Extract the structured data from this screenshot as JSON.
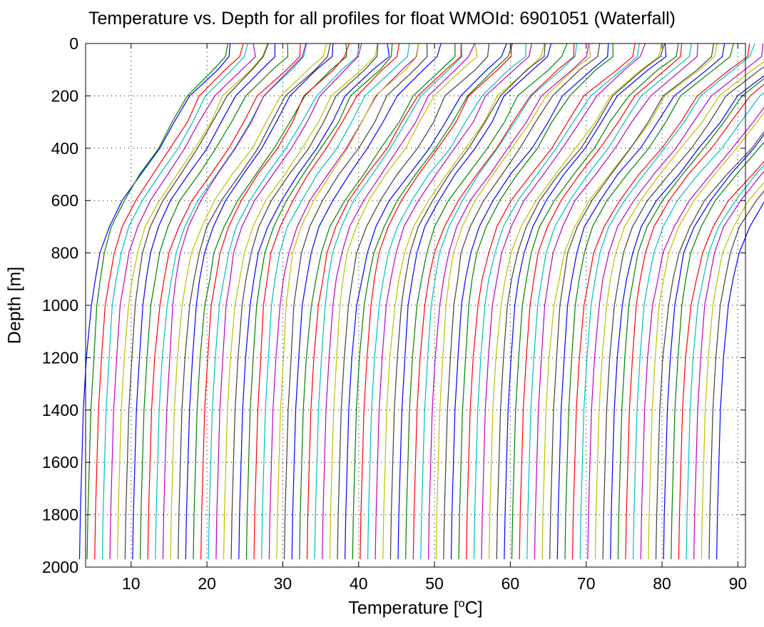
{
  "chart_data": {
    "type": "line",
    "title": "Temperature vs. Depth for all profiles for float WMOId: 6901051 (Waterfall)",
    "xlabel_text": "Temperature [",
    "xlabel_sup": "o",
    "xlabel_tail": "C]",
    "ylabel": "Depth [m]",
    "xlim": [
      4,
      91
    ],
    "ylim": [
      2000,
      0
    ],
    "y_reversed": true,
    "grid": true,
    "x_ticks": [
      10,
      20,
      30,
      40,
      50,
      60,
      70,
      80,
      90
    ],
    "y_ticks": [
      0,
      200,
      400,
      600,
      800,
      1000,
      1200,
      1400,
      1600,
      1800,
      2000
    ],
    "color_cycle": [
      "#0000ff",
      "#008000",
      "#ff0000",
      "#00bfbf",
      "#bf00bf",
      "#bfbf00",
      "#404040"
    ],
    "profile_count": 85,
    "waterfall_offset_per_profile": 1,
    "profile_shape_depth": [
      0,
      50,
      100,
      200,
      300,
      400,
      500,
      600,
      700,
      800,
      900,
      1000,
      1200,
      1400,
      1600,
      1800,
      1970
    ],
    "profile_shape_temp": [
      21.5,
      21.3,
      19.5,
      16.0,
      14.2,
      12.2,
      9.8,
      7.5,
      5.8,
      4.7,
      4.1,
      3.6,
      3.1,
      2.7,
      2.5,
      2.3,
      2.2
    ],
    "first_profile_x_offset": 1.0,
    "notes_depth_at_bottom": 1970
  }
}
